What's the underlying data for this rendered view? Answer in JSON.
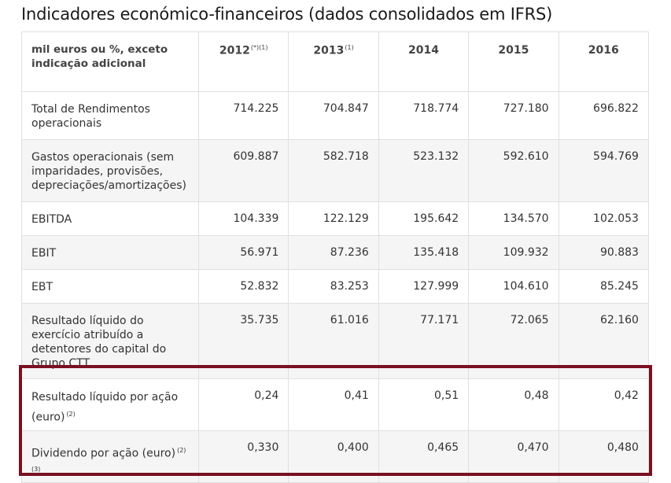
{
  "title": "Indicadores económico-financeiros (dados consolidados em IFRS)",
  "header": {
    "label": "mil euros ou %, exceto indicação adicional",
    "years": [
      {
        "year": "2012",
        "note": "(*)(1)"
      },
      {
        "year": "2013",
        "note": "(1)"
      },
      {
        "year": "2014",
        "note": ""
      },
      {
        "year": "2015",
        "note": ""
      },
      {
        "year": "2016",
        "note": ""
      }
    ]
  },
  "rows": [
    {
      "label": "Total de Rendimentos operacionais",
      "values": [
        "714.225",
        "704.847",
        "718.774",
        "727.180",
        "696.822"
      ]
    },
    {
      "label": "Gastos operacionais (sem imparidades, provisões, depreciações/amortizações)",
      "values": [
        "609.887",
        "582.718",
        "523.132",
        "592.610",
        "594.769"
      ]
    },
    {
      "label": "EBITDA",
      "values": [
        "104.339",
        "122.129",
        "195.642",
        "134.570",
        "102.053"
      ]
    },
    {
      "label": "EBIT",
      "values": [
        "56.971",
        "87.236",
        "135.418",
        "109.932",
        "90.883"
      ]
    },
    {
      "label": "EBT",
      "values": [
        "52.832",
        "83.253",
        "127.999",
        "104.610",
        "85.245"
      ]
    },
    {
      "label": "Resultado líquido do exercício atribuído a detentores do capital do Grupo CTT",
      "values": [
        "35.735",
        "61.016",
        "77.171",
        "72.065",
        "62.160"
      ]
    },
    {
      "label": "Resultado líquido por ação (euro)",
      "note": "(2)",
      "values": [
        "0,24",
        "0,41",
        "0,51",
        "0,48",
        "0,42"
      ]
    },
    {
      "label": "Dividendo por ação (euro)",
      "note": "(2)",
      "subnote": "(3)",
      "values": [
        "0,330",
        "0,400",
        "0,465",
        "0,470",
        "0,480"
      ]
    }
  ]
}
